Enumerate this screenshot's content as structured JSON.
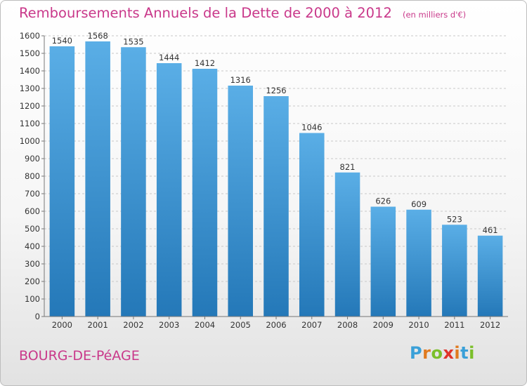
{
  "chart_data": {
    "type": "bar",
    "title": "Remboursements Annuels de la Dette de 2000 à 2012",
    "subtitle": "(en milliers d'€)",
    "categories": [
      "2000",
      "2001",
      "2002",
      "2003",
      "2004",
      "2005",
      "2006",
      "2007",
      "2008",
      "2009",
      "2010",
      "2011",
      "2012"
    ],
    "values": [
      1540,
      1568,
      1535,
      1444,
      1412,
      1316,
      1256,
      1046,
      821,
      626,
      609,
      523,
      461
    ],
    "ylim": [
      0,
      1600
    ],
    "ytick_step": 100,
    "xlabel": "",
    "ylabel": "",
    "grid": true
  },
  "footer": {
    "city": "BOURG-DE-PéAGE",
    "brand_letters": [
      "P",
      "r",
      "o",
      "x",
      "i",
      "t",
      "i"
    ],
    "brand_colors": [
      "#3aa0d8",
      "#e07a1f",
      "#7bbf2a",
      "#e0342b",
      "#e07a1f",
      "#3aa0d8",
      "#7bbf2a"
    ]
  },
  "colors": {
    "bar_top": "#5aaee6",
    "bar_bottom": "#2478b8",
    "title": "#c9388a"
  }
}
